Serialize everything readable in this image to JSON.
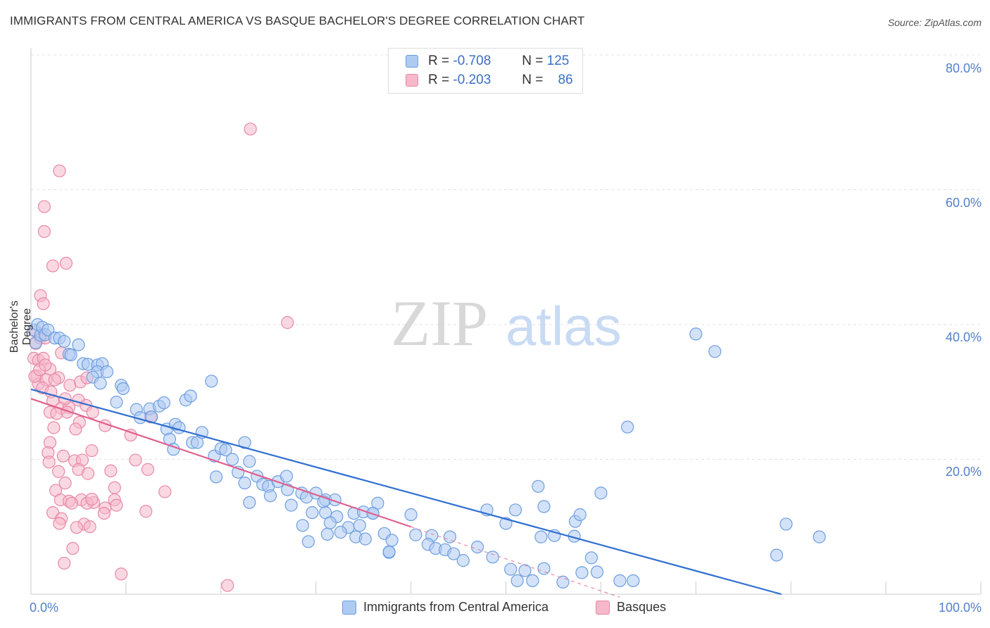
{
  "title": "IMMIGRANTS FROM CENTRAL AMERICA VS BASQUE BACHELOR'S DEGREE CORRELATION CHART",
  "source": "Source: ZipAtlas.com",
  "watermark": {
    "zip": "ZIP",
    "atlas": "atlas"
  },
  "colors": {
    "blue_fill": "#aecbf2",
    "blue_stroke": "#6d9ee0",
    "blue_line": "#2f6fd0",
    "pink_fill": "#f6b8ca",
    "pink_stroke": "#e888a6",
    "pink_line": "#e0608e",
    "axis_text": "#4f80cc",
    "grid": "#e3e3e3"
  },
  "legend": {
    "rows": [
      {
        "r_label": "R =",
        "r_value": "-0.708",
        "n_label": "N =",
        "n_value": "125"
      },
      {
        "r_label": "R =",
        "r_value": "-0.203",
        "n_label": "N =",
        "n_value": "86"
      }
    ]
  },
  "bottom_legend": [
    "Immigrants from Central America",
    "Basques"
  ],
  "chart_data": {
    "type": "scatter",
    "xlabel": "",
    "ylabel": "Bachelor's Degree",
    "xlim": [
      0,
      100
    ],
    "ylim": [
      0,
      80
    ],
    "x_tick_labels": [
      "0.0%",
      "100.0%"
    ],
    "y_ticks": [
      20,
      40,
      60,
      80
    ],
    "y_tick_labels": [
      "20.0%",
      "40.0%",
      "60.0%",
      "80.0%"
    ],
    "grid": true,
    "legend_position": "top-center",
    "series": [
      {
        "name": "Immigrants from Central America",
        "trend": {
          "x": [
            0,
            79
          ],
          "y": [
            30.4,
            0
          ]
        },
        "points": [
          [
            0.3,
            39.2
          ],
          [
            0.5,
            37.3
          ],
          [
            0.7,
            40
          ],
          [
            1.0,
            38.4
          ],
          [
            1.2,
            39.6
          ],
          [
            1.5,
            38.5
          ],
          [
            1.8,
            39.2
          ],
          [
            2.5,
            38
          ],
          [
            3.0,
            38
          ],
          [
            3.5,
            37.5
          ],
          [
            4.0,
            35.6
          ],
          [
            4.2,
            35.5
          ],
          [
            5.0,
            37.0
          ],
          [
            5.5,
            34.2
          ],
          [
            6.0,
            34.1
          ],
          [
            7.0,
            34.0
          ],
          [
            7.5,
            34.2
          ],
          [
            7.0,
            33.0
          ],
          [
            8.0,
            33.0
          ],
          [
            6.5,
            32.2
          ],
          [
            9.5,
            31.0
          ],
          [
            9.7,
            30.5
          ],
          [
            7.3,
            31.3
          ],
          [
            9.0,
            28.5
          ],
          [
            11.1,
            27.4
          ],
          [
            12.5,
            27.5
          ],
          [
            11.5,
            26.2
          ],
          [
            12.7,
            26.3
          ],
          [
            13.5,
            27.9
          ],
          [
            14.0,
            28.4
          ],
          [
            14.3,
            24.5
          ],
          [
            15.2,
            25.2
          ],
          [
            15.6,
            24.7
          ],
          [
            16.3,
            28.8
          ],
          [
            16.8,
            29.4
          ],
          [
            19.0,
            31.6
          ],
          [
            14.6,
            23.0
          ],
          [
            15.0,
            21.5
          ],
          [
            17.0,
            22.5
          ],
          [
            17.5,
            22.5
          ],
          [
            18.0,
            24.0
          ],
          [
            19.3,
            20.5
          ],
          [
            20.0,
            21.6
          ],
          [
            20.5,
            21.4
          ],
          [
            21.2,
            20.0
          ],
          [
            22.5,
            22.5
          ],
          [
            19.5,
            17.4
          ],
          [
            21.8,
            18.1
          ],
          [
            23.0,
            19.7
          ],
          [
            22.5,
            16.5
          ],
          [
            23.8,
            17.5
          ],
          [
            24.4,
            16.3
          ],
          [
            25.0,
            16.0
          ],
          [
            26.0,
            16.7
          ],
          [
            26.9,
            17.5
          ],
          [
            27.0,
            15.5
          ],
          [
            28.5,
            15.0
          ],
          [
            29.0,
            14.4
          ],
          [
            30.0,
            15.0
          ],
          [
            31.0,
            14.0
          ],
          [
            32.0,
            14.0
          ],
          [
            30.8,
            13.7
          ],
          [
            23.0,
            13.6
          ],
          [
            25.2,
            14.6
          ],
          [
            27.4,
            13.2
          ],
          [
            29.6,
            12.1
          ],
          [
            31.0,
            12.1
          ],
          [
            32.2,
            11.5
          ],
          [
            34.0,
            12.0
          ],
          [
            35.0,
            12.2
          ],
          [
            36.0,
            12.0
          ],
          [
            28.6,
            10.2
          ],
          [
            31.5,
            10.6
          ],
          [
            33.4,
            9.9
          ],
          [
            34.6,
            10.2
          ],
          [
            32.6,
            9.2
          ],
          [
            31.2,
            8.9
          ],
          [
            34.2,
            8.5
          ],
          [
            29.2,
            7.8
          ],
          [
            37.2,
            9.0
          ],
          [
            38.0,
            8.0
          ],
          [
            40.5,
            8.8
          ],
          [
            42.2,
            8.7
          ],
          [
            44.1,
            8.5
          ],
          [
            37.7,
            6.2
          ],
          [
            41.8,
            7.4
          ],
          [
            42.6,
            6.8
          ],
          [
            43.6,
            6.6
          ],
          [
            47.0,
            7.0
          ],
          [
            50.0,
            10.5
          ],
          [
            36.5,
            13.5
          ],
          [
            40.0,
            11.8
          ],
          [
            48.0,
            12.5
          ],
          [
            51.0,
            12.5
          ],
          [
            54.0,
            13.0
          ],
          [
            57.3,
            10.8
          ],
          [
            57.8,
            11.8
          ],
          [
            55.1,
            8.7
          ],
          [
            53.4,
            16.0
          ],
          [
            48.6,
            5.5
          ],
          [
            44.5,
            6.0
          ],
          [
            45.5,
            5.0
          ],
          [
            50.5,
            3.7
          ],
          [
            52.0,
            3.5
          ],
          [
            54.0,
            3.8
          ],
          [
            51.2,
            2.0
          ],
          [
            52.8,
            2.0
          ],
          [
            56.0,
            1.8
          ],
          [
            58.0,
            3.2
          ],
          [
            59.0,
            5.4
          ],
          [
            59.6,
            3.3
          ],
          [
            62.0,
            2.0
          ],
          [
            63.4,
            2.0
          ],
          [
            60.0,
            15.0
          ],
          [
            62.8,
            24.8
          ],
          [
            78.5,
            5.8
          ],
          [
            83.0,
            8.5
          ],
          [
            79.5,
            10.4
          ],
          [
            70.0,
            38.6
          ],
          [
            72.0,
            36.0
          ],
          [
            36.0,
            12.0
          ],
          [
            37.7,
            6.3
          ],
          [
            35.2,
            8.2
          ],
          [
            57.2,
            8.6
          ],
          [
            53.7,
            8.5
          ]
        ]
      },
      {
        "name": "Basques",
        "trend": {
          "x": [
            0,
            40
          ],
          "y": [
            29.0,
            10.0
          ]
        },
        "points": [
          [
            23.1,
            69.0
          ],
          [
            3.0,
            62.8
          ],
          [
            1.4,
            57.5
          ],
          [
            1.4,
            53.8
          ],
          [
            2.3,
            48.7
          ],
          [
            3.7,
            49.1
          ],
          [
            1.0,
            44.3
          ],
          [
            1.3,
            43.1
          ],
          [
            27.0,
            40.3
          ],
          [
            0.5,
            39.0
          ],
          [
            0.5,
            37.2
          ],
          [
            1.0,
            38.0
          ],
          [
            1.5,
            38.0
          ],
          [
            0.3,
            35.0
          ],
          [
            0.8,
            34.7
          ],
          [
            1.3,
            35.0
          ],
          [
            2.0,
            33.4
          ],
          [
            3.2,
            35.8
          ],
          [
            0.6,
            32.4
          ],
          [
            0.8,
            31.2
          ],
          [
            1.6,
            31.8
          ],
          [
            2.9,
            32.1
          ],
          [
            4.1,
            31.0
          ],
          [
            5.2,
            31.5
          ],
          [
            5.9,
            32.1
          ],
          [
            1.2,
            30.6
          ],
          [
            2.1,
            30.0
          ],
          [
            2.3,
            28.7
          ],
          [
            3.2,
            27.6
          ],
          [
            4.0,
            27.7
          ],
          [
            5.0,
            28.8
          ],
          [
            5.8,
            28.0
          ],
          [
            2.0,
            27.0
          ],
          [
            2.7,
            26.8
          ],
          [
            3.8,
            27.0
          ],
          [
            5.1,
            25.5
          ],
          [
            6.5,
            27.0
          ],
          [
            4.7,
            24.5
          ],
          [
            7.8,
            25.0
          ],
          [
            10.5,
            23.6
          ],
          [
            12.6,
            26.3
          ],
          [
            2.4,
            24.7
          ],
          [
            2.0,
            22.5
          ],
          [
            1.8,
            21.0
          ],
          [
            3.4,
            20.5
          ],
          [
            6.4,
            21.3
          ],
          [
            4.6,
            19.8
          ],
          [
            1.9,
            19.6
          ],
          [
            5.4,
            19.9
          ],
          [
            11.0,
            19.9
          ],
          [
            5.0,
            18.5
          ],
          [
            8.4,
            18.3
          ],
          [
            12.3,
            18.5
          ],
          [
            2.9,
            18.2
          ],
          [
            6.0,
            17.9
          ],
          [
            3.6,
            16.5
          ],
          [
            2.6,
            15.4
          ],
          [
            8.8,
            15.8
          ],
          [
            14.1,
            15.2
          ],
          [
            3.1,
            14.0
          ],
          [
            5.3,
            14.0
          ],
          [
            6.6,
            13.6
          ],
          [
            7.8,
            12.8
          ],
          [
            8.8,
            14.0
          ],
          [
            4.0,
            13.8
          ],
          [
            5.9,
            13.5
          ],
          [
            6.4,
            14.1
          ],
          [
            4.3,
            13.5
          ],
          [
            7.7,
            12.0
          ],
          [
            2.3,
            12.1
          ],
          [
            3.2,
            11.2
          ],
          [
            3.0,
            10.5
          ],
          [
            5.6,
            10.4
          ],
          [
            6.2,
            10.0
          ],
          [
            4.8,
            9.9
          ],
          [
            4.4,
            6.8
          ],
          [
            3.5,
            4.6
          ],
          [
            9.5,
            3.0
          ],
          [
            20.7,
            1.3
          ],
          [
            12.1,
            12.3
          ],
          [
            9.0,
            13.2
          ],
          [
            0.4,
            32.3
          ],
          [
            0.9,
            33.3
          ],
          [
            1.5,
            34.0
          ],
          [
            2.5,
            31.8
          ],
          [
            3.6,
            29.0
          ]
        ]
      }
    ]
  }
}
